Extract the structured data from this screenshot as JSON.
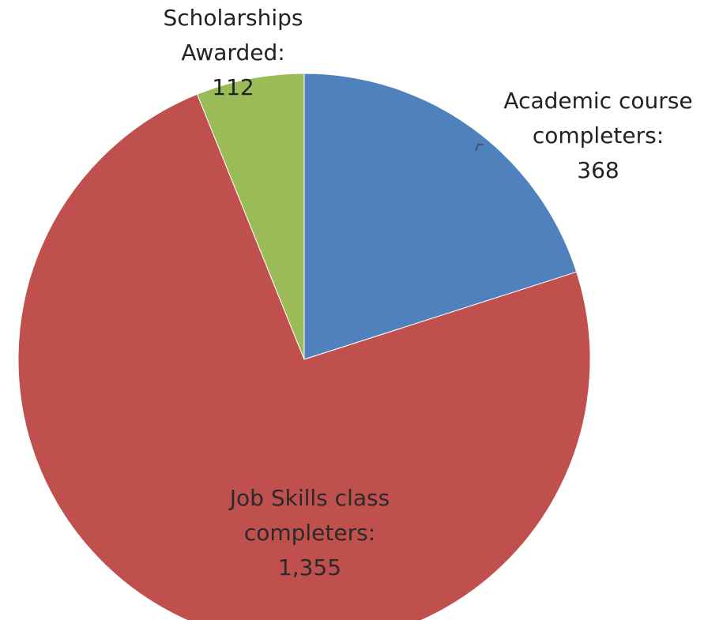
{
  "chart_data": {
    "type": "pie",
    "slices": [
      {
        "label_lines": [
          "Academic course",
          "completers:",
          "368"
        ],
        "value": 368,
        "color": "#4f81bd"
      },
      {
        "label_lines": [
          "Job Skills class",
          "completers:",
          "1,355"
        ],
        "value": 1355,
        "color": "#c0504d"
      },
      {
        "label_lines": [
          "Scholarships",
          "Awarded:",
          "112"
        ],
        "value": 112,
        "color": "#9bbb59"
      }
    ],
    "start": "12 o'clock",
    "direction": "clockwise",
    "legend": "none"
  }
}
